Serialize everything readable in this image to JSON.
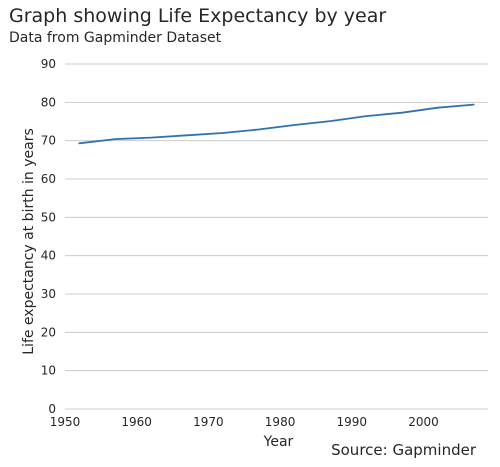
{
  "header": {
    "title": "Graph showing Life Expectancy by year",
    "subtitle": "Data from Gapminder Dataset"
  },
  "footer": {
    "source": "Source: Gapminder"
  },
  "chart_data": {
    "type": "line",
    "title": "Graph showing Life Expectancy by year",
    "subtitle": "Data from Gapminder Dataset",
    "xlabel": "Year",
    "ylabel": "Life expectancy at birth in years",
    "xlim": [
      1950,
      2009
    ],
    "ylim": [
      0,
      90
    ],
    "xticks": [
      1950,
      1960,
      1970,
      1980,
      1990,
      2000
    ],
    "yticks": [
      0,
      10,
      20,
      30,
      40,
      50,
      60,
      70,
      80,
      90
    ],
    "grid": "horizontal",
    "legend": "none",
    "line_color": "#2f72b0",
    "series": [
      {
        "x": [
          1952,
          1957,
          1962,
          1967,
          1972,
          1977,
          1982,
          1987,
          1992,
          1997,
          2002,
          2007
        ],
        "values": [
          69.3,
          70.4,
          70.8,
          71.4,
          72.0,
          72.9,
          74.1,
          75.1,
          76.4,
          77.3,
          78.6,
          79.4
        ]
      }
    ]
  }
}
